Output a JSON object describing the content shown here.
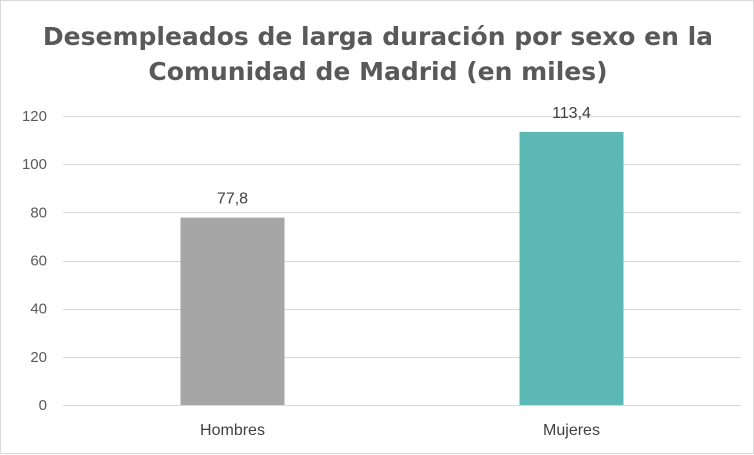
{
  "chart_data": {
    "type": "bar",
    "title": "Desempleados de larga duración por sexo en la\nComunidad de Madrid (en miles)",
    "categories": [
      "Hombres",
      "Mujeres"
    ],
    "values": [
      77.8,
      113.4
    ],
    "data_labels": [
      "77,8",
      "113,4"
    ],
    "bar_colors": [
      "#a6a6a6",
      "#5bb8b4"
    ],
    "ylim": [
      0,
      120
    ],
    "yticks": [
      0,
      20,
      40,
      60,
      80,
      100,
      120
    ],
    "grid": true,
    "legend": "none",
    "xlabel": "",
    "ylabel": ""
  },
  "colors": {
    "grid": "#d9d9d9",
    "axis": "#d9d9d9",
    "text": "#595959"
  }
}
